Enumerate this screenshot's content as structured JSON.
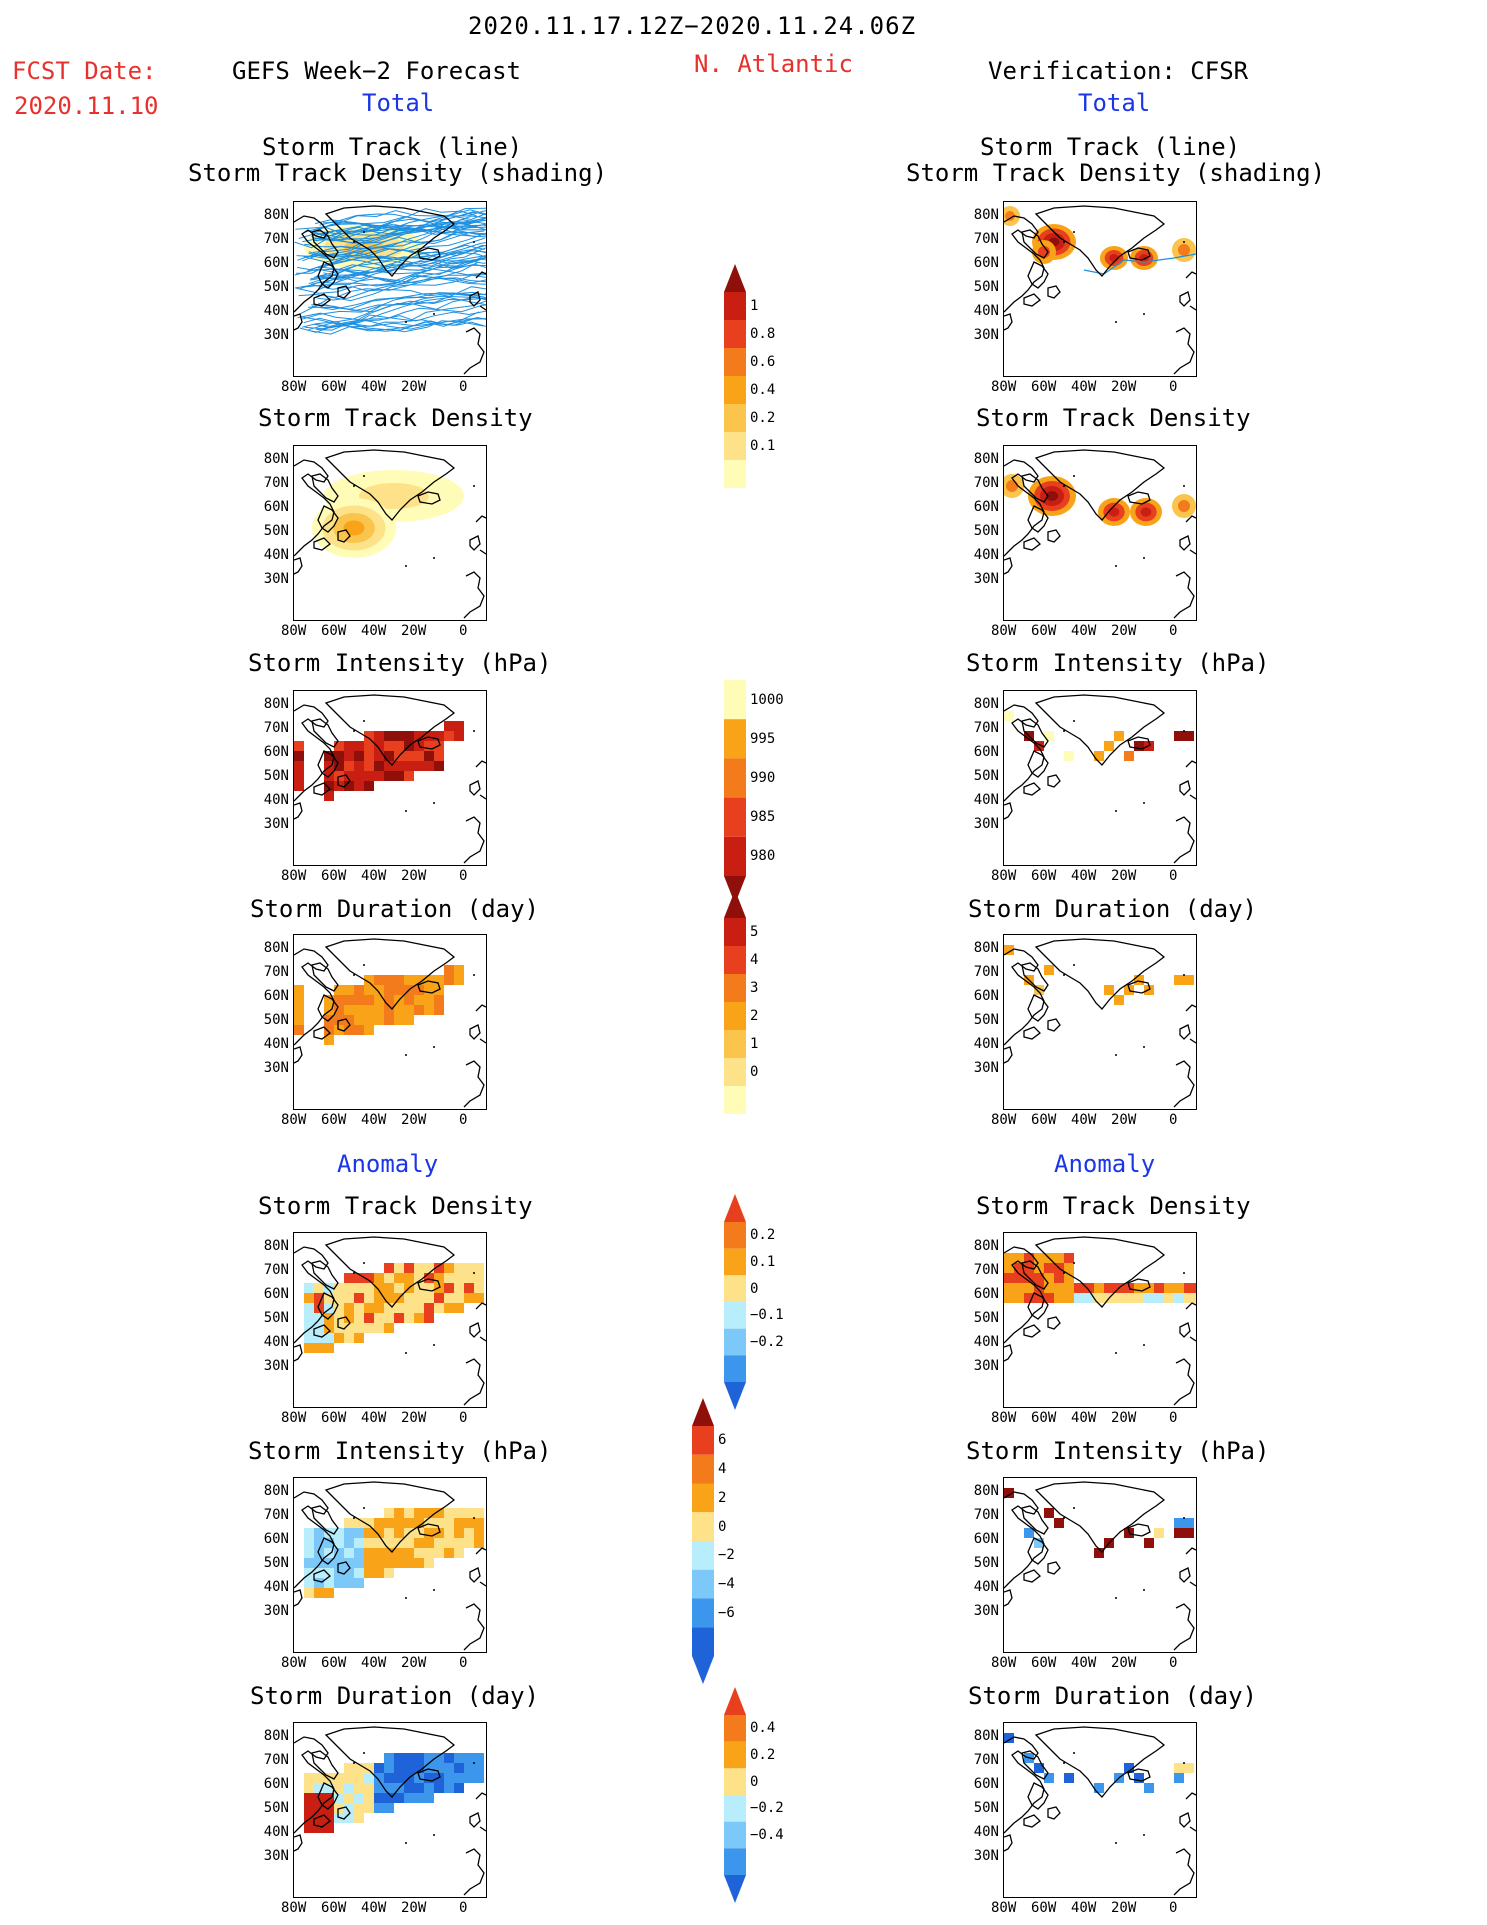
{
  "header": {
    "title": "2020.11.17.12Z−2020.11.24.06Z",
    "fcst_label": "FCST Date:",
    "fcst_date": "2020.11.10",
    "left_title": "GEFS Week−2 Forecast",
    "region": "N. Atlantic",
    "right_title": "Verification: CFSR",
    "total_label": "Total",
    "anomaly_label": "Anomaly"
  },
  "panels": {
    "track": [
      "Storm Track (line)",
      "Storm Track Density (shading)"
    ],
    "density": "Storm Track Density",
    "intensity": "Storm Intensity (hPa)",
    "duration": "Storm Duration (day)"
  },
  "axes": {
    "lat_ticks": [
      "80N",
      "70N",
      "60N",
      "50N",
      "40N",
      "30N"
    ],
    "lon_ticks": [
      "80W",
      "60W",
      "40W",
      "20W",
      "0"
    ]
  },
  "colorbars": {
    "density": [
      "1",
      "0.8",
      "0.6",
      "0.4",
      "0.2",
      "0.1"
    ],
    "intensity": [
      "1000",
      "995",
      "990",
      "985",
      "980"
    ],
    "duration": [
      "5",
      "4",
      "3",
      "2",
      "1",
      "0"
    ],
    "density_anom": [
      "0.2",
      "0.1",
      "0",
      "−0.1",
      "−0.2"
    ],
    "intensity_anom": [
      "6",
      "4",
      "2",
      "0",
      "−2",
      "−4",
      "−6"
    ],
    "duration_anom": [
      "0.4",
      "0.2",
      "0",
      "−0.2",
      "−0.4"
    ]
  },
  "colors": {
    "title_red": "#e8302c",
    "label_blue": "#1a36e6",
    "track_line": "#1e90e0",
    "warm": [
      "#fffcb8",
      "#fde28a",
      "#fbc44c",
      "#f8a318",
      "#f37b1c",
      "#e8401f",
      "#c81f12",
      "#8f0f0a"
    ],
    "cool": [
      "#b8eefc",
      "#7cc8f8",
      "#3c96ec",
      "#1e64d8"
    ]
  }
}
